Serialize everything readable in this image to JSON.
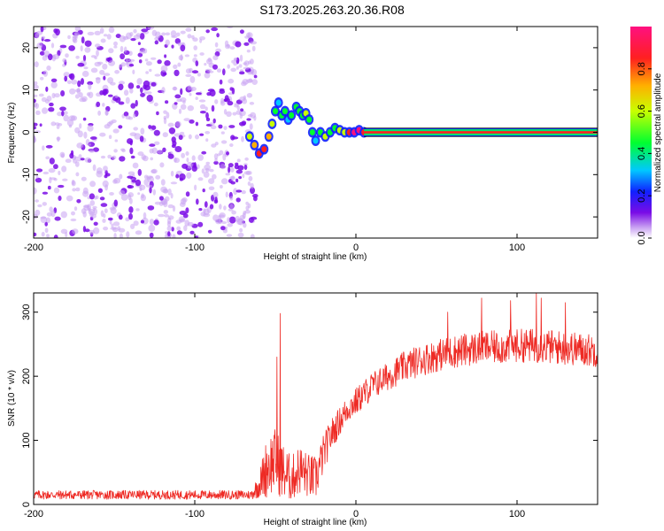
{
  "title": "S173.2025.263.20.36.R08",
  "colors": {
    "snr_line": "#ee2a24",
    "blob_strong": "#7a0ce6",
    "blob_faint": "#c9a2f2",
    "axis": "#000000"
  },
  "chart_data": [
    {
      "type": "heatmap",
      "name": "spectrogram",
      "xlabel": "Height of straight line (km)",
      "ylabel": "Frequency (Hz)",
      "xlim": [
        -200,
        150
      ],
      "ylim": [
        -25,
        25
      ],
      "xticks": [
        -200,
        -100,
        0,
        100
      ],
      "yticks": [
        -20,
        -10,
        0,
        10,
        20
      ],
      "noise_region_x": [
        -200,
        -62
      ],
      "signal_band": {
        "x": [
          5,
          150
        ],
        "center_hz": 0,
        "halfwidth_hz": 1
      },
      "trail": [
        {
          "x": -66,
          "y": -1,
          "a": 0.55
        },
        {
          "x": -63,
          "y": -3,
          "a": 0.7
        },
        {
          "x": -60,
          "y": -5,
          "a": 0.8
        },
        {
          "x": -57,
          "y": -4,
          "a": 0.75
        },
        {
          "x": -54,
          "y": -1,
          "a": 0.7
        },
        {
          "x": -52,
          "y": 2,
          "a": 0.55
        },
        {
          "x": -50,
          "y": 5,
          "a": 0.35
        },
        {
          "x": -48,
          "y": 7,
          "a": 0.3
        },
        {
          "x": -46,
          "y": 4,
          "a": 0.45
        },
        {
          "x": -44,
          "y": 5,
          "a": 0.35
        },
        {
          "x": -42,
          "y": 3,
          "a": 0.3
        },
        {
          "x": -40,
          "y": 4,
          "a": 0.4
        },
        {
          "x": -37,
          "y": 6,
          "a": 0.45
        },
        {
          "x": -35,
          "y": 5,
          "a": 0.4
        },
        {
          "x": -33,
          "y": 4,
          "a": 0.45
        },
        {
          "x": -31,
          "y": 4.5,
          "a": 0.55
        },
        {
          "x": -29,
          "y": 3,
          "a": 0.4
        },
        {
          "x": -27,
          "y": 0,
          "a": 0.35
        },
        {
          "x": -25,
          "y": -2,
          "a": 0.3
        },
        {
          "x": -22,
          "y": 0,
          "a": 0.35
        },
        {
          "x": -19,
          "y": -1,
          "a": 0.5
        },
        {
          "x": -16,
          "y": 0,
          "a": 0.4
        },
        {
          "x": -13,
          "y": 1,
          "a": 0.45
        },
        {
          "x": -10,
          "y": 0.5,
          "a": 0.5
        },
        {
          "x": -7,
          "y": 0,
          "a": 0.6
        },
        {
          "x": -4,
          "y": 0,
          "a": 0.8
        },
        {
          "x": -1,
          "y": 0,
          "a": 0.9
        },
        {
          "x": 2,
          "y": 0.5,
          "a": 0.95
        },
        {
          "x": 5,
          "y": 0,
          "a": 0.85
        }
      ],
      "colorbar": {
        "label": "Normalized spectral amplitude",
        "range": [
          0,
          1
        ],
        "ticks": [
          "0.0",
          "0.2",
          "0.4",
          "0.6",
          "0.8"
        ]
      }
    },
    {
      "type": "line",
      "name": "snr",
      "xlabel": "Height of straight line (km)",
      "ylabel": "SNR (10 * v/v)",
      "xlim": [
        -200,
        150
      ],
      "ylim": [
        0,
        330
      ],
      "xticks": [
        -200,
        -100,
        0,
        100
      ],
      "yticks": [
        0,
        100,
        200,
        300
      ],
      "envelope": {
        "x": [
          -200,
          -65,
          -60,
          -55,
          -50,
          -45,
          -40,
          -35,
          -30,
          -25,
          -20,
          -15,
          -10,
          -5,
          0,
          10,
          20,
          30,
          40,
          50,
          60,
          70,
          80,
          90,
          100,
          110,
          120,
          130,
          140,
          150
        ],
        "mean": [
          15,
          15,
          30,
          60,
          70,
          50,
          40,
          55,
          45,
          40,
          80,
          110,
          130,
          150,
          160,
          185,
          200,
          215,
          225,
          232,
          238,
          242,
          245,
          245,
          248,
          248,
          246,
          244,
          242,
          240
        ],
        "noise": [
          7,
          7,
          20,
          50,
          50,
          45,
          35,
          40,
          35,
          35,
          30,
          25,
          22,
          22,
          22,
          22,
          22,
          24,
          25,
          25,
          26,
          26,
          26,
          26,
          26,
          27,
          27,
          27,
          26,
          26
        ]
      },
      "spikes": [
        {
          "x": -47,
          "y": 298
        },
        {
          "x": -49,
          "y": 230
        },
        {
          "x": 78,
          "y": 322
        },
        {
          "x": 112,
          "y": 330
        },
        {
          "x": 96,
          "y": 318
        },
        {
          "x": 130,
          "y": 315
        },
        {
          "x": 57,
          "y": 300
        },
        {
          "x": 115,
          "y": 322
        }
      ]
    }
  ]
}
